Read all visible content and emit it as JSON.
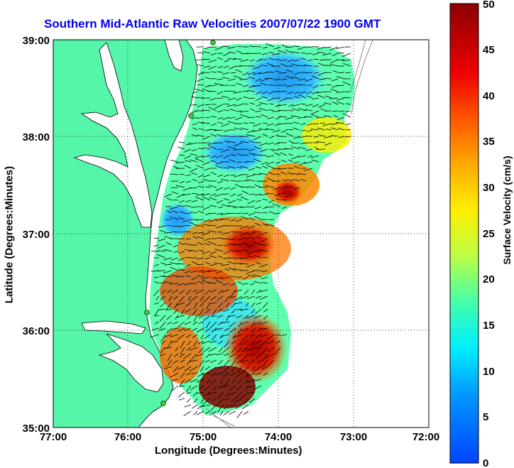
{
  "title": "Southern Mid-Atlantic Raw Velocities 2007/07/22 1900 GMT",
  "xlabel": "Longitude (Degrees:Minutes)",
  "ylabel": "Latitude (Degrees:Minutes)",
  "colorbar": {
    "label": "Surface Velocity (cm/s)",
    "ticks": [
      "0",
      "5",
      "10",
      "15",
      "20",
      "25",
      "30",
      "35",
      "40",
      "45",
      "50"
    ],
    "min": 0,
    "max": 50
  },
  "axes": {
    "x_ticks": [
      "77:00",
      "76:00",
      "75:00",
      "74:00",
      "73:00",
      "72:00"
    ],
    "y_ticks": [
      "39:00",
      "38:00",
      "37:00",
      "36:00",
      "35:00"
    ],
    "lon_range": [
      -77,
      -72
    ],
    "lat_range": [
      35,
      39
    ],
    "grid": "dotted"
  },
  "colors": {
    "land": "#55f5aa",
    "title": "#0000ee",
    "station": "#33cc33"
  }
}
